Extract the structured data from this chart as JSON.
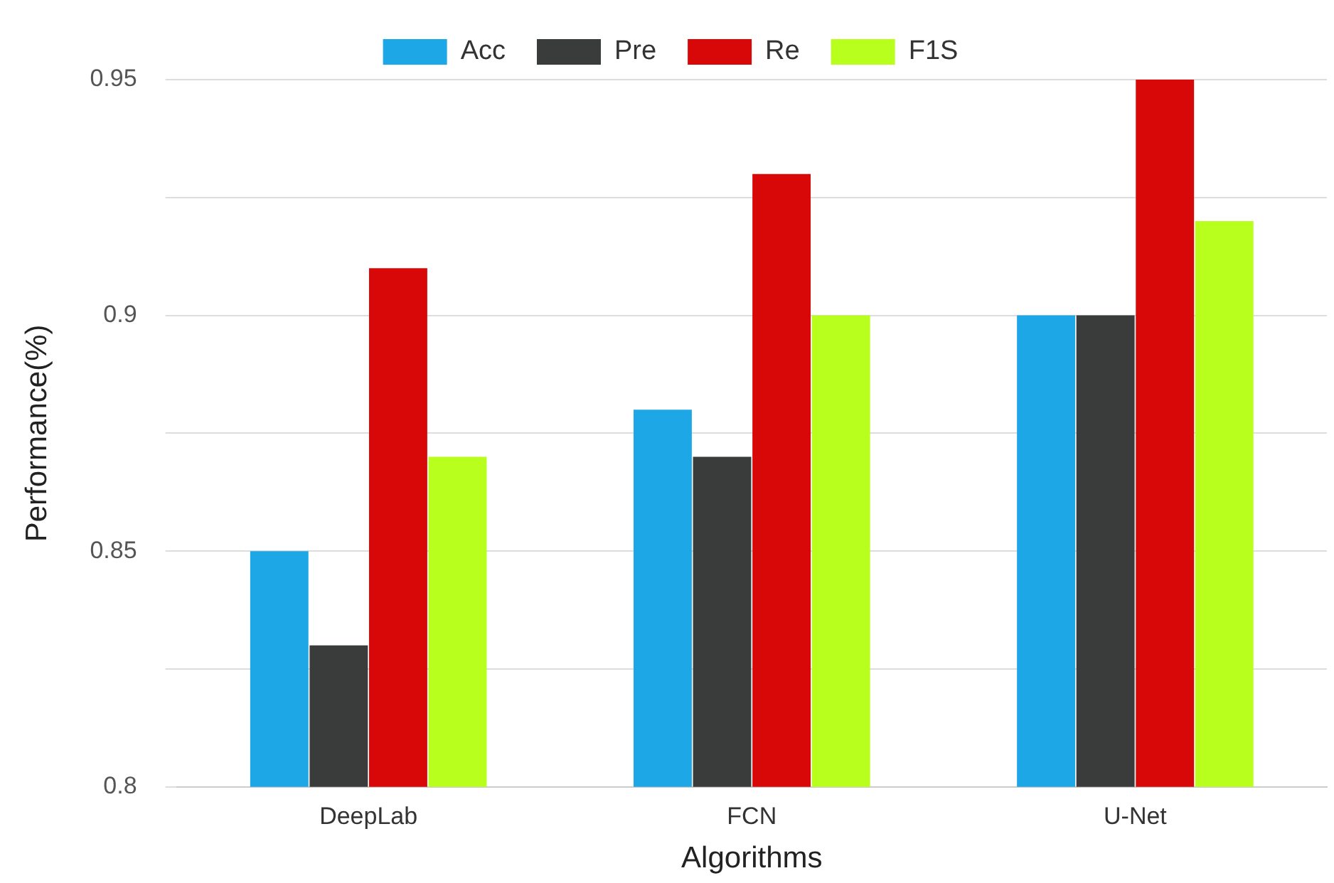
{
  "chart_data": {
    "type": "bar",
    "xlabel": "Algorithms",
    "ylabel": "Performance(%)",
    "categories": [
      "DeepLab",
      "FCN",
      "U-Net"
    ],
    "series": [
      {
        "name": "Acc",
        "color": "#1ea7e6",
        "values": [
          0.85,
          0.88,
          0.9
        ]
      },
      {
        "name": "Pre",
        "color": "#3a3c3c",
        "values": [
          0.83,
          0.87,
          0.9
        ]
      },
      {
        "name": "Re",
        "color": "#d90808",
        "values": [
          0.91,
          0.93,
          0.95
        ]
      },
      {
        "name": "F1S",
        "color": "#b8ff1e",
        "values": [
          0.87,
          0.9,
          0.92
        ]
      }
    ],
    "ylim": [
      0.8,
      0.95
    ],
    "yticks": [
      0.8,
      {
        "value": 0.825,
        "label": null
      },
      0.85,
      {
        "value": 0.875,
        "label": null
      },
      0.9,
      {
        "value": 0.925,
        "label": null
      },
      0.95
    ],
    "grid": "y",
    "legend": "top"
  }
}
